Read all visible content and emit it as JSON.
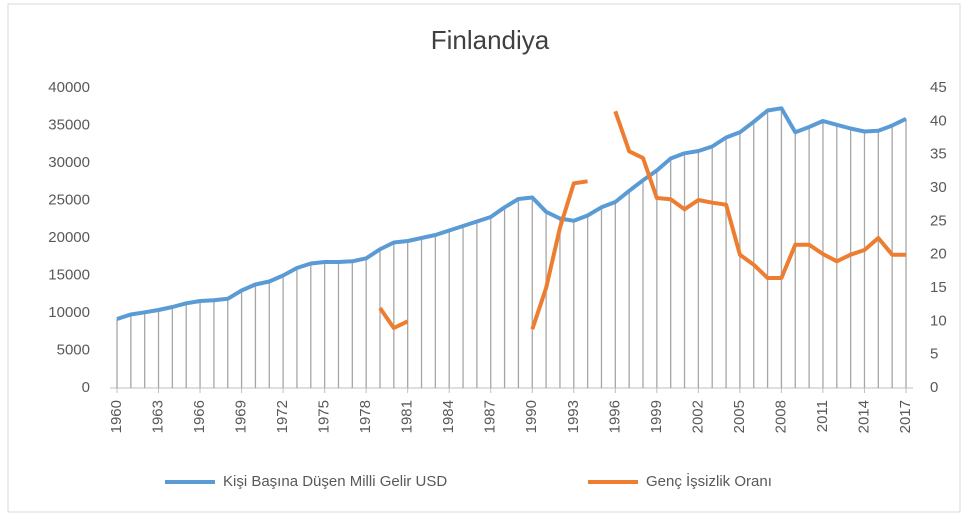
{
  "chart_data": {
    "type": "line",
    "title": "Finlandiya",
    "x": [
      1960,
      1961,
      1962,
      1963,
      1964,
      1965,
      1966,
      1967,
      1968,
      1969,
      1970,
      1971,
      1972,
      1973,
      1974,
      1975,
      1976,
      1977,
      1978,
      1979,
      1980,
      1981,
      1982,
      1983,
      1984,
      1985,
      1986,
      1987,
      1988,
      1989,
      1990,
      1991,
      1992,
      1993,
      1994,
      1995,
      1996,
      1997,
      1998,
      1999,
      2000,
      2001,
      2002,
      2003,
      2004,
      2005,
      2006,
      2007,
      2008,
      2009,
      2010,
      2011,
      2012,
      2013,
      2014,
      2015,
      2016,
      2017
    ],
    "xlim": [
      1960,
      2017
    ],
    "xticks": [
      1960,
      1963,
      1966,
      1969,
      1972,
      1975,
      1978,
      1981,
      1984,
      1987,
      1990,
      1993,
      1996,
      1999,
      2002,
      2005,
      2008,
      2011,
      2014,
      2017
    ],
    "ylim": [
      0,
      40000
    ],
    "yticks": [
      0,
      5000,
      10000,
      15000,
      20000,
      25000,
      30000,
      35000,
      40000
    ],
    "y2lim": [
      0,
      45
    ],
    "y2ticks": [
      0,
      5,
      10,
      15,
      20,
      25,
      30,
      35,
      40,
      45
    ],
    "drop_lines": true,
    "legend": "bottom",
    "series": [
      {
        "name": "Kişi Başına Düşen Milli Gelir USD",
        "color": "#5b9bd5",
        "values": [
          9200,
          9800,
          10100,
          10400,
          10800,
          11300,
          11600,
          11700,
          11900,
          13000,
          13800,
          14200,
          15000,
          16000,
          16600,
          16800,
          16800,
          16900,
          17300,
          18500,
          19400,
          19600,
          20000,
          20400,
          21000,
          21600,
          22200,
          22800,
          24100,
          25200,
          25400,
          23500,
          22600,
          22300,
          23000,
          24100,
          24800,
          26300,
          27700,
          29000,
          30600,
          31300,
          31600,
          32200,
          33400,
          34100,
          35500,
          37000,
          37300,
          34100,
          34800,
          35600,
          35100,
          34600,
          34200,
          34300,
          35000,
          35900
        ]
      },
      {
        "name": "Genç İşsizlik Oranı",
        "color": "#ed7d31",
        "axis": "y2",
        "values": [
          null,
          null,
          null,
          null,
          null,
          null,
          null,
          null,
          null,
          null,
          null,
          null,
          null,
          null,
          null,
          null,
          null,
          null,
          null,
          12,
          9,
          10,
          null,
          null,
          null,
          null,
          null,
          null,
          null,
          null,
          8.8,
          15,
          24,
          30.7,
          31,
          null,
          41.5,
          35.5,
          34.5,
          28.5,
          28.3,
          26.8,
          28.2,
          27.8,
          27.5,
          20,
          18.5,
          16.5,
          16.5,
          21.5,
          21.5,
          20.1,
          19,
          20,
          20.7,
          22.5,
          20,
          20
        ]
      }
    ]
  }
}
